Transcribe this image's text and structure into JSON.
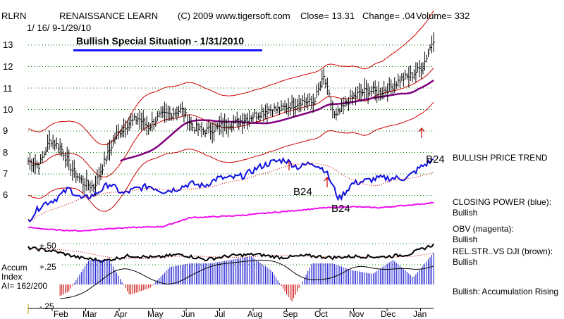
{
  "header": {
    "symbol": "RLRN",
    "company": "RENAISSANCE LEARN",
    "copyright": "(C) 2009 www.tigersoft.com",
    "close": "Close=  13.31",
    "change": "Change= .04",
    "volume": "Volume= 332",
    "date_range": "1/ 16/ 9-1/29/10"
  },
  "banner": "Bullish Special Situation - 1/31/2010",
  "annotations": {
    "b24_top": "B24",
    "b24_mid": "B24",
    "b24_obv": "B24"
  },
  "side_labels": {
    "trend": "BULLISH PRICE TREND",
    "cp_title": "CLOSING POWER (blue):",
    "cp_value": "Bullish",
    "obv_title": "OBV (magenta):",
    "obv_value": "Bullish",
    "rs_title": "REL.STR..VS DJI (brown):",
    "rs_value": "Bullish",
    "accum_status": "Bullish: Accumulation Rising"
  },
  "accum_labels": {
    "title1": "Accum",
    "title2": "Index",
    "ai": "AI= 162/200",
    "plus50": "+.50",
    "plus25": "+.25",
    "minus25": "-.25"
  },
  "colors": {
    "price": "#000000",
    "bands": "#cc0000",
    "ma_short": "#cc0000",
    "ma_long": "#800080",
    "closing_power": "#1010e0",
    "obv": "#ee10ee",
    "rel_strength": "#000000",
    "accum_pos": "#1010cc",
    "accum_neg": "#cc0000",
    "gridline": "#008000"
  },
  "chart_data": {
    "type": "line",
    "title": "RENAISSANCE LEARN",
    "xlabel": "",
    "ylabel": "",
    "ylim": [
      5.5,
      14
    ],
    "y_ticks": [
      13,
      12,
      11,
      10,
      9,
      8,
      7,
      6
    ],
    "x_ticks": [
      "Feb",
      "Mar",
      "Apr",
      "May",
      "Jun",
      "Jul",
      "Aug",
      "Sep",
      "Oct",
      "Nov",
      "Dec",
      "Jan"
    ],
    "series": [
      {
        "name": "",
        "values": [
          7.6,
          7.4,
          8.6,
          8.2,
          7.2,
          6.6,
          6.4,
          7.6,
          8.8,
          9.3,
          9.6,
          9.2,
          9.7,
          9.8,
          10.0,
          9.2,
          9.0,
          9.1,
          9.3,
          9.4,
          9.6,
          9.8,
          10.0,
          10.0,
          10.2,
          10.4,
          10.3,
          11.5,
          9.6,
          10.3,
          10.7,
          10.9,
          10.8,
          11.0,
          11.4,
          11.6,
          12.0,
          13.3
        ]
      },
      {
        "name": "CLOSING POWER",
        "values": [
          0.2,
          0.5,
          0.6,
          0.8,
          0.6,
          0.7,
          0.9,
          0.7,
          0.8,
          0.85,
          0.75,
          0.8,
          0.9,
          0.85,
          1.0,
          1.0,
          1.05,
          1.2,
          1.3,
          1.35,
          1.2,
          1.3,
          1.15,
          0.6,
          0.9,
          0.95,
          1.0,
          1.0,
          1.0,
          1.2,
          1.35
        ]
      },
      {
        "name": "OBV",
        "values": [
          0.1,
          0.05,
          0.03,
          0.08,
          0.1,
          0.12,
          0.3,
          0.32,
          0.35,
          0.4,
          0.45,
          0.5,
          0.52,
          0.5,
          0.55,
          0.6
        ]
      },
      {
        "name": "REL.STR..VS DJI",
        "values": [
          0.5,
          0.45,
          0.35,
          0.3,
          0.38,
          0.35,
          0.4,
          0.32,
          0.38,
          0.4,
          0.35,
          0.38,
          0.35,
          0.37,
          0.36,
          0.4,
          0.55
        ]
      },
      {
        "name": "Accum Index",
        "values": [
          -0.15,
          -0.25,
          -0.1,
          0.35,
          0.35,
          -0.15,
          -0.05,
          0.25,
          0.3,
          0.3,
          0.35,
          0.4,
          0.2,
          -0.25,
          0.3,
          0.3,
          0.2,
          0.15,
          0.35,
          0.1,
          0.45
        ]
      }
    ]
  }
}
